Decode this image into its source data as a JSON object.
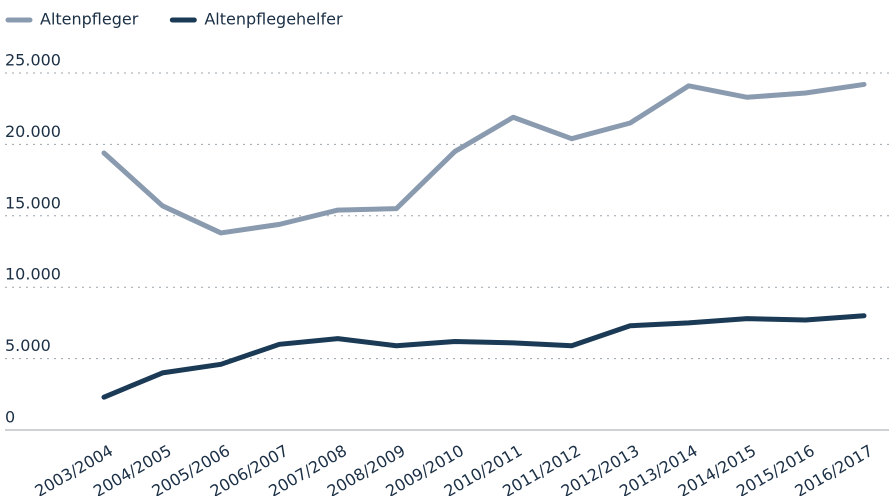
{
  "chart_data": {
    "type": "line",
    "categories": [
      "2003/2004",
      "2004/2005",
      "2005/2006",
      "2006/2007",
      "2007/2008",
      "2008/2009",
      "2009/2010",
      "2010/2011",
      "2011/2012",
      "2012/2013",
      "2013/2014",
      "2014/2015",
      "2015/2016",
      "2016/2017"
    ],
    "series": [
      {
        "name": "Altenpfleger",
        "color": "#8a9bb0",
        "values": [
          19400,
          15700,
          13800,
          14400,
          15400,
          15500,
          19500,
          21900,
          20400,
          21500,
          24100,
          23300,
          23600,
          24200
        ]
      },
      {
        "name": "Altenpflegehelfer",
        "color": "#1b3a55",
        "values": [
          2300,
          4000,
          4600,
          6000,
          6400,
          5900,
          6200,
          6100,
          5900,
          7300,
          7500,
          7800,
          7700,
          8000
        ]
      }
    ],
    "ylim": [
      0,
      25000
    ],
    "yticks": [
      0,
      {
        "value": 5000,
        "label": "5.000"
      },
      {
        "value": 10000,
        "label": "10.000"
      },
      {
        "value": 15000,
        "label": "15.000"
      },
      {
        "value": 20000,
        "label": "20.000"
      },
      {
        "value": 25000,
        "label": "25.000"
      }
    ],
    "grid": true,
    "legend": "top-left"
  }
}
